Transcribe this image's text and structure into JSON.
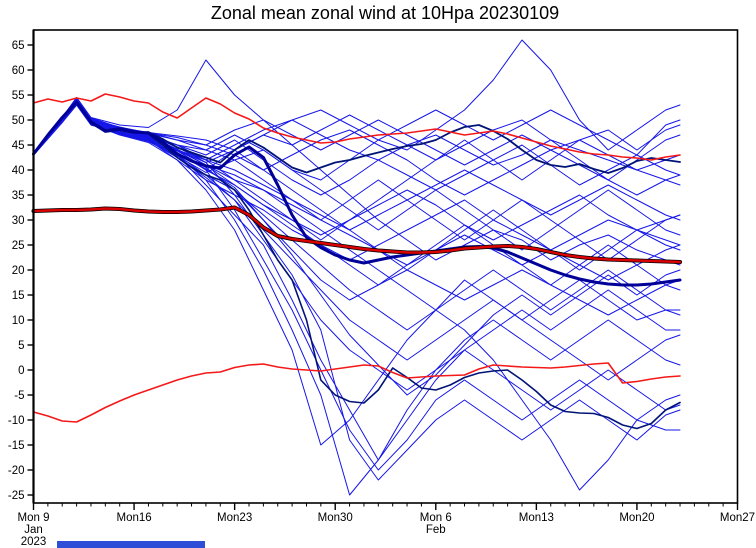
{
  "chart_data": {
    "type": "line",
    "title": "Zonal mean zonal wind at 10Hpa 20230109",
    "y_axis": {
      "min": -25,
      "max": 65,
      "step": 5,
      "grid": false
    },
    "x_axis": {
      "total_days": 49,
      "minor_tick_every_days": 1,
      "ticks": [
        {
          "day": 0,
          "label": "Mon 9",
          "sub": [
            "Jan",
            "2023"
          ]
        },
        {
          "day": 7,
          "label": "Mon16",
          "sub": []
        },
        {
          "day": 14,
          "label": "Mon23",
          "sub": []
        },
        {
          "day": 21,
          "label": "Mon30",
          "sub": []
        },
        {
          "day": 28,
          "label": "Mon 6",
          "sub": [
            "Feb"
          ]
        },
        {
          "day": 35,
          "label": "Mon13",
          "sub": []
        },
        {
          "day": 42,
          "label": "Mon20",
          "sub": []
        },
        {
          "day": 49,
          "label": "Mon27",
          "sub": []
        }
      ]
    },
    "colors": {
      "member": "#1616e8",
      "ensemble_mean": "#000099",
      "control": "#001377",
      "climatology_red": "#dd0000",
      "climatology_edge": "#000000",
      "percentile_red": "#f51818"
    },
    "legend": "none",
    "series_daily_x": {
      "start_day": 0,
      "step_days": 1
    },
    "series": {
      "red_upper": [
        53.4,
        54.2,
        53.6,
        54.4,
        53.8,
        55.2,
        54.6,
        53.8,
        53.4,
        51.6,
        50.4,
        52.4,
        54.4,
        53.2,
        51.4,
        50.2,
        48.4,
        47.4,
        46.6,
        46.0,
        45.4,
        45.6,
        46.2,
        46.6,
        47.0,
        47.2,
        47.4,
        47.8,
        48.2,
        47.6,
        47.0,
        47.4,
        47.8,
        47.2,
        46.4,
        45.6,
        44.8,
        44.2,
        43.6,
        43.2,
        43.0,
        42.6,
        42.4,
        42.0,
        42.6,
        43.0
      ],
      "red_lower": [
        -8.4,
        -9.2,
        -10.2,
        -10.4,
        -9.0,
        -7.5,
        -6.2,
        -5.0,
        -4.0,
        -3.0,
        -2.0,
        -1.2,
        -0.6,
        -0.4,
        0.5,
        1.0,
        1.2,
        0.6,
        0.2,
        0.0,
        -0.2,
        0.2,
        0.6,
        1.0,
        0.8,
        -0.5,
        -1.6,
        -1.4,
        -1.2,
        -1.1,
        -1.0,
        0.2,
        1.0,
        0.8,
        0.6,
        0.5,
        0.4,
        0.6,
        0.9,
        1.2,
        1.4,
        -2.6,
        -2.3,
        -1.8,
        -1.4,
        -1.2
      ],
      "climatology": [
        31.8,
        31.9,
        32.0,
        32.0,
        32.1,
        32.3,
        32.2,
        31.9,
        31.7,
        31.6,
        31.6,
        31.7,
        31.9,
        32.1,
        32.5,
        31.0,
        28.5,
        26.8,
        26.2,
        25.8,
        25.4,
        25.0,
        24.6,
        24.2,
        23.9,
        23.7,
        23.5,
        23.5,
        23.6,
        23.9,
        24.3,
        24.5,
        24.7,
        24.8,
        24.6,
        24.2,
        23.6,
        23.0,
        22.6,
        22.3,
        22.1,
        22.0,
        21.9,
        21.8,
        21.7,
        21.6
      ],
      "ensemble_mean": [
        43.2,
        47.0,
        50.5,
        53.6,
        49.6,
        47.8,
        48.2,
        47.6,
        47.4,
        45.6,
        43.2,
        41.8,
        40.8,
        40.4,
        43.0,
        44.6,
        42.5,
        37.0,
        31.0,
        26.5,
        24.5,
        23.0,
        22.0,
        21.4,
        22.0,
        22.6,
        23.0,
        23.4,
        23.8,
        24.2,
        24.6,
        24.7,
        24.4,
        23.6,
        22.4,
        21.2,
        20.0,
        19.0,
        18.2,
        17.6,
        17.2,
        17.0,
        17.0,
        17.2,
        17.6,
        18.0
      ],
      "control_high": [
        43.2,
        47.0,
        50.3,
        53.4,
        49.4,
        47.6,
        48.0,
        47.4,
        47.6,
        46.2,
        44.5,
        43.5,
        42.5,
        41.5,
        44.0,
        46.0,
        44.5,
        42.5,
        40.5,
        39.5,
        40.5,
        41.5,
        42.0,
        42.8,
        43.5,
        44.2,
        44.8,
        45.2,
        46.0,
        47.5,
        48.6,
        49.0,
        47.8,
        46.2,
        44.0,
        42.0,
        41.0,
        40.6,
        41.2,
        40.2,
        39.4,
        40.4,
        41.8,
        42.4,
        42.0,
        41.6
      ],
      "control_low": [
        43.2,
        47.0,
        50.6,
        53.8,
        49.8,
        48.0,
        48.4,
        47.8,
        47.2,
        45.0,
        42.5,
        40.5,
        39.0,
        38.0,
        36.0,
        32.0,
        27.0,
        22.0,
        18.0,
        10.0,
        -2.0,
        -5.0,
        -6.3,
        -6.6,
        -4.0,
        0.4,
        -1.5,
        -3.6,
        -4.0,
        -3.0,
        -1.5,
        -0.6,
        -0.2,
        0.0,
        -2.0,
        -4.3,
        -7.0,
        -8.3,
        -8.6,
        -8.7,
        -9.5,
        -11.0,
        -11.7,
        -10.7,
        -8.0,
        -6.5
      ]
    },
    "members_x_days": [
      0,
      2,
      3,
      4,
      6,
      8,
      10,
      12,
      14,
      16,
      18,
      20,
      22,
      24,
      26,
      28,
      30,
      32,
      34,
      36,
      38,
      40,
      42,
      44,
      45
    ],
    "members": [
      [
        43,
        50,
        54,
        50,
        48,
        47,
        45,
        44,
        47,
        44,
        40,
        38,
        42,
        46,
        44,
        48,
        52,
        58,
        66,
        60,
        50,
        44,
        48,
        52,
        53
      ],
      [
        43,
        50.5,
        54.5,
        50.5,
        49,
        48.5,
        52,
        62,
        55,
        50,
        45,
        40,
        35,
        30,
        26,
        22,
        25,
        28,
        26,
        22,
        25,
        27,
        24,
        22,
        21
      ],
      [
        43,
        49.5,
        53,
        49,
        47.5,
        46,
        44,
        42,
        45,
        48,
        50,
        47,
        44,
        42,
        45,
        47,
        44,
        41,
        43,
        46,
        44,
        42,
        40,
        38,
        37
      ],
      [
        43,
        50,
        54,
        49.5,
        48,
        47.5,
        46,
        45,
        43,
        40,
        43,
        46,
        48,
        45,
        42,
        38,
        35,
        38,
        41,
        44,
        46,
        43,
        40,
        42,
        43
      ],
      [
        43,
        50.5,
        53.5,
        50,
        48.5,
        47,
        44,
        40,
        44,
        47,
        45,
        48,
        51,
        48,
        45,
        42,
        45,
        48,
        50,
        46,
        42,
        38,
        42,
        46,
        47
      ],
      [
        43,
        49.5,
        53.2,
        49.2,
        47,
        45.5,
        42,
        38,
        35,
        32,
        28,
        25,
        22,
        25,
        28,
        31,
        34,
        30,
        27,
        24,
        27,
        30,
        28,
        25,
        24
      ],
      [
        43,
        50,
        54.2,
        50.2,
        48.2,
        46.5,
        43.5,
        40,
        37,
        33,
        30,
        27,
        30,
        33,
        36,
        33,
        29,
        26,
        29,
        32,
        35,
        31,
        28,
        30,
        31
      ],
      [
        43,
        49.8,
        53.4,
        49.4,
        47.2,
        46,
        43,
        41,
        38,
        36,
        33,
        30,
        27,
        24,
        21,
        24,
        27,
        24,
        21,
        24,
        21,
        18,
        21,
        24,
        25
      ],
      [
        43,
        50.2,
        53.8,
        49.8,
        47.6,
        46.2,
        42.5,
        39,
        36,
        30,
        24,
        18,
        14,
        17,
        20,
        17,
        14,
        17,
        20,
        17,
        14,
        11,
        14,
        17,
        18
      ],
      [
        43,
        50,
        54,
        50,
        48,
        47,
        43,
        38,
        30,
        20,
        8,
        -5,
        -25,
        -18,
        -8,
        0,
        6,
        10,
        6,
        2,
        6,
        10,
        6,
        2,
        1
      ],
      [
        43,
        50.4,
        54.4,
        50.4,
        48.4,
        47.2,
        44,
        40,
        32,
        22,
        12,
        0,
        -12,
        -20,
        -14,
        -6,
        -2,
        -6,
        -10,
        -6,
        -2,
        -6,
        -10,
        -12,
        -12
      ],
      [
        43,
        49.6,
        53,
        49,
        47.4,
        46,
        42,
        36,
        28,
        16,
        4,
        -15,
        -10,
        -2,
        6,
        12,
        18,
        14,
        10,
        14,
        18,
        14,
        10,
        12,
        12
      ],
      [
        43,
        50.2,
        54.1,
        50,
        48,
        46.8,
        44,
        41,
        39,
        36,
        32,
        28,
        24,
        20,
        16,
        12,
        8,
        2,
        -6,
        -14,
        -24,
        -18,
        -10,
        -6,
        -5
      ],
      [
        43,
        49.9,
        53.6,
        49.6,
        47.4,
        46.3,
        43,
        39,
        34,
        26,
        18,
        10,
        4,
        0,
        -4,
        0,
        4,
        0,
        -4,
        -8,
        -4,
        0,
        -4,
        -8,
        -7
      ],
      [
        43,
        50.1,
        53.9,
        50,
        48.1,
        47,
        45,
        43,
        46,
        42,
        38,
        35,
        38,
        42,
        39,
        36,
        39,
        42,
        45,
        41,
        37,
        40,
        43,
        40,
        39
      ],
      [
        43,
        50.3,
        54.3,
        50.3,
        48.3,
        47.1,
        44.5,
        42,
        40,
        37,
        34,
        31,
        28,
        31,
        34,
        37,
        40,
        37,
        34,
        31,
        34,
        37,
        34,
        31,
        30
      ],
      [
        43,
        49.7,
        53.3,
        49.3,
        47.3,
        45.8,
        42.5,
        38.5,
        34,
        28,
        22,
        16,
        10,
        6,
        2,
        6,
        10,
        14,
        10,
        6,
        2,
        -2,
        2,
        6,
        7
      ],
      [
        43,
        50,
        53.7,
        49.7,
        47.7,
        46.6,
        44,
        41.5,
        44,
        40,
        36,
        32,
        28,
        24,
        20,
        24,
        28,
        32,
        28,
        24,
        20,
        24,
        28,
        26,
        25
      ],
      [
        43,
        50.2,
        54,
        50,
        48,
        47,
        45,
        42,
        38,
        34,
        30,
        26,
        30,
        34,
        38,
        42,
        46,
        42,
        38,
        42,
        46,
        48,
        44,
        48,
        49
      ],
      [
        43,
        49.8,
        53.5,
        49.5,
        47.5,
        46.4,
        43,
        37,
        31,
        25,
        14,
        2,
        -8,
        -18,
        -10,
        -2,
        4,
        8,
        12,
        8,
        12,
        16,
        12,
        8,
        8
      ],
      [
        43,
        50.4,
        54.2,
        50.2,
        48.4,
        47.3,
        46,
        44,
        42,
        44,
        40,
        36,
        32,
        28,
        32,
        36,
        32,
        28,
        24,
        28,
        32,
        36,
        32,
        28,
        27
      ],
      [
        43,
        49.9,
        53.8,
        49.8,
        47.8,
        46.4,
        43.8,
        40.5,
        36,
        31,
        26,
        21,
        16,
        12,
        8,
        12,
        16,
        20,
        16,
        12,
        16,
        20,
        16,
        12,
        11
      ],
      [
        43,
        50.1,
        54,
        50.1,
        48.6,
        47.4,
        46.5,
        45,
        48,
        50,
        47,
        44,
        47,
        50,
        47,
        44,
        41,
        44,
        47,
        44,
        41,
        38,
        35,
        38,
        39
      ],
      [
        43,
        50,
        53.9,
        49.9,
        47.9,
        46.7,
        44.2,
        41,
        37,
        33,
        29,
        25,
        21,
        17,
        21,
        25,
        29,
        25,
        21,
        17,
        21,
        25,
        21,
        17,
        16
      ],
      [
        43,
        50.3,
        54.1,
        50.1,
        48.2,
        47.2,
        44.6,
        41.5,
        35,
        27,
        19,
        8,
        -14,
        -22,
        -16,
        -10,
        -6,
        -10,
        -14,
        -10,
        -6,
        -10,
        -14,
        -9,
        -8
      ],
      [
        43,
        49.6,
        53.1,
        49.1,
        47.1,
        45.7,
        42.8,
        39.5,
        42,
        38,
        34,
        30,
        34,
        38,
        34,
        30,
        26,
        30,
        34,
        30,
        26,
        22,
        26,
        30,
        31
      ],
      [
        43,
        50.5,
        54.5,
        50.4,
        48.5,
        47.5,
        46.8,
        46,
        44,
        47,
        50,
        52,
        49,
        46,
        49,
        52,
        49,
        46,
        49,
        52,
        49,
        46,
        43,
        49,
        50
      ],
      [
        43,
        49.7,
        53.2,
        49.2,
        47.2,
        45.9,
        43.2,
        40.2,
        36.5,
        30,
        23,
        15,
        7,
        1,
        -5,
        -1,
        5,
        11,
        15,
        11,
        15,
        19,
        15,
        19,
        20
      ]
    ]
  },
  "footer": {
    "blue_bar": true
  }
}
